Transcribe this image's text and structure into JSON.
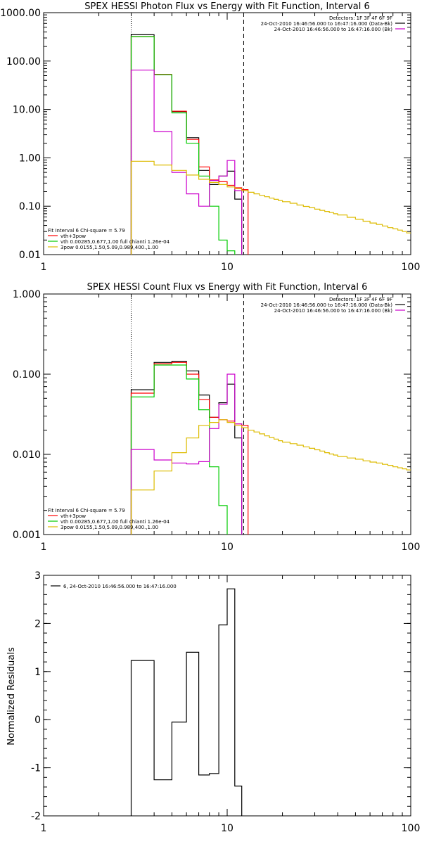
{
  "chart_data": [
    {
      "type": "line",
      "title": "SPEX HESSI Photon Flux vs Energy with Fit Function, Interval 6",
      "xlabel": "",
      "ylabel": "",
      "xscale": "log",
      "yscale": "log",
      "xlim": [
        1,
        100
      ],
      "ylim": [
        0.01,
        1000
      ],
      "x_ticks": [
        "1",
        "10",
        "100"
      ],
      "y_ticks": [
        "0.01",
        "0.10",
        "1.00",
        "10.00",
        "100.00",
        "1000.00"
      ],
      "legend_topright": [
        {
          "text": "Detectors: 1F 3F 4F 6F 9F",
          "color": ""
        },
        {
          "text": "24-Oct-2010 16:46:56.000 to 16:47:16.000 (Data-Bk)",
          "color": "#000000"
        },
        {
          "text": "24-Oct-2010 16:46:56.000 to 16:47:16.000 (Bk)",
          "color": "#cc00cc"
        }
      ],
      "legend_bottomleft": [
        {
          "text": "Fit Interval  6    Chi-square = 5.79",
          "color": ""
        },
        {
          "text": "vth+3pow",
          "color": "#ff0000"
        },
        {
          "text": "vth 0.00285,0.677,1.00   full chianti 1.26e-04",
          "color": "#00cc00"
        },
        {
          "text": "3pow 0.0155,1.50,5.09,0.989,400.,1.00",
          "color": "#ddbb00"
        }
      ],
      "vlines": [
        {
          "x": 3.0,
          "style": "dotted"
        },
        {
          "x": 12.3,
          "style": "dashed"
        }
      ],
      "series": [
        {
          "name": "24-Oct-2010 16:46:56.000 to 16:47:16.000 (Data-Bk)",
          "color": "#000000",
          "edges": [
            3,
            4,
            5,
            6,
            7,
            8,
            9,
            10,
            11,
            12
          ],
          "values": [
            350,
            52,
            9,
            2.6,
            0.55,
            0.28,
            0.42,
            0.53,
            0.14
          ]
        },
        {
          "name": "vth+3pow",
          "color": "#ff0000",
          "edges": [
            3,
            4,
            5,
            6,
            7,
            8,
            9,
            10,
            11,
            12,
            13
          ],
          "values": [
            320,
            53,
            9.2,
            2.4,
            0.65,
            0.35,
            0.32,
            0.27,
            0.24,
            0.22
          ]
        },
        {
          "name": "vth",
          "color": "#00cc00",
          "edges": [
            3,
            4,
            5,
            6,
            7,
            8,
            9,
            10,
            11
          ],
          "values": [
            320,
            52,
            8.5,
            2.0,
            0.42,
            0.1,
            0.02,
            0.012
          ]
        },
        {
          "name": "24-Oct-2010 16:46:56.000 to 16:47:16.000 (Bk)",
          "color": "#cc00cc",
          "edges": [
            3,
            4,
            5,
            6,
            7,
            8,
            9,
            10,
            11,
            12
          ],
          "values": [
            65,
            3.5,
            0.5,
            0.18,
            0.1,
            0.34,
            0.42,
            0.88,
            0.21
          ]
        },
        {
          "name": "3pow",
          "color": "#ddbb00",
          "edges": [
            3,
            4,
            5,
            6,
            7,
            8,
            9,
            10,
            11,
            12,
            13,
            14,
            15,
            16,
            17,
            18,
            19,
            20,
            22,
            24,
            26,
            28,
            30,
            32,
            34,
            36,
            38,
            40,
            45,
            50,
            55,
            60,
            65,
            70,
            75,
            80,
            85,
            90,
            95,
            100
          ],
          "values": [
            0.85,
            0.71,
            0.55,
            0.44,
            0.36,
            0.31,
            0.28,
            0.25,
            0.23,
            0.21,
            0.194,
            0.18,
            0.168,
            0.157,
            0.147,
            0.139,
            0.131,
            0.124,
            0.115,
            0.106,
            0.099,
            0.093,
            0.087,
            0.082,
            0.078,
            0.074,
            0.07,
            0.066,
            0.059,
            0.054,
            0.049,
            0.045,
            0.042,
            0.039,
            0.036,
            0.034,
            0.032,
            0.03,
            0.028
          ]
        }
      ]
    },
    {
      "type": "line",
      "title": "SPEX HESSI Count Flux vs Energy with Fit Function, Interval 6",
      "xlabel": "",
      "ylabel": "",
      "xscale": "log",
      "yscale": "log",
      "xlim": [
        1,
        100
      ],
      "ylim": [
        0.001,
        1
      ],
      "x_ticks": [
        "1",
        "10",
        "100"
      ],
      "y_ticks": [
        "0.001",
        "0.010",
        "0.100",
        "1.000"
      ],
      "legend_topright": [
        {
          "text": "Detectors: 1F 3F 4F 6F 9F",
          "color": ""
        },
        {
          "text": "24-Oct-2010 16:46:56.000 to 16:47:16.000 (Data-Bk)",
          "color": "#000000"
        },
        {
          "text": "24-Oct-2010 16:46:56.000 to 16:47:16.000 (Bk)",
          "color": "#cc00cc"
        }
      ],
      "legend_bottomleft": [
        {
          "text": "Fit Interval  6    Chi-square = 5.79",
          "color": ""
        },
        {
          "text": "vth+3pow",
          "color": "#ff0000"
        },
        {
          "text": "vth 0.00285,0.677,1.00   full chianti 1.26e-04",
          "color": "#00cc00"
        },
        {
          "text": "3pow 0.0155,1.50,5.09,0.989,400.,1.00",
          "color": "#ddbb00"
        }
      ],
      "vlines": [
        {
          "x": 3.0,
          "style": "dotted"
        },
        {
          "x": 12.3,
          "style": "dashed"
        }
      ],
      "series": [
        {
          "name": "24-Oct-2010 16:46:56.000 to 16:47:16.000 (Data-Bk)",
          "color": "#000000",
          "edges": [
            3,
            4,
            5,
            6,
            7,
            8,
            9,
            10,
            11,
            12
          ],
          "values": [
            0.064,
            0.14,
            0.145,
            0.11,
            0.055,
            0.029,
            0.044,
            0.075,
            0.016
          ]
        },
        {
          "name": "vth+3pow",
          "color": "#ff0000",
          "edges": [
            3,
            4,
            5,
            6,
            7,
            8,
            9,
            10,
            11,
            12,
            13
          ],
          "values": [
            0.058,
            0.135,
            0.14,
            0.1,
            0.048,
            0.029,
            0.027,
            0.026,
            0.024,
            0.023
          ]
        },
        {
          "name": "vth",
          "color": "#00cc00",
          "edges": [
            3,
            4,
            5,
            6,
            7,
            8,
            9,
            10,
            11
          ],
          "values": [
            0.052,
            0.13,
            0.13,
            0.087,
            0.036,
            0.007,
            0.0023,
            0.0009
          ]
        },
        {
          "name": "24-Oct-2010 16:46:56.000 to 16:47:16.000 (Bk)",
          "color": "#cc00cc",
          "edges": [
            3,
            4,
            5,
            6,
            7,
            8,
            9,
            10,
            11,
            12
          ],
          "values": [
            0.0115,
            0.0085,
            0.0078,
            0.0076,
            0.0081,
            0.021,
            0.042,
            0.1,
            0.024
          ]
        },
        {
          "name": "3pow",
          "color": "#ddbb00",
          "edges": [
            3,
            4,
            5,
            6,
            7,
            8,
            9,
            10,
            11,
            12,
            13,
            14,
            15,
            16,
            17,
            18,
            19,
            20,
            22,
            24,
            26,
            28,
            30,
            32,
            34,
            36,
            38,
            40,
            45,
            50,
            55,
            60,
            65,
            70,
            75,
            80,
            85,
            90,
            95,
            100
          ],
          "values": [
            0.0036,
            0.0062,
            0.0105,
            0.016,
            0.023,
            0.025,
            0.027,
            0.025,
            0.023,
            0.0215,
            0.02,
            0.019,
            0.018,
            0.017,
            0.0162,
            0.0155,
            0.0148,
            0.0142,
            0.0136,
            0.013,
            0.0124,
            0.0119,
            0.0114,
            0.011,
            0.0105,
            0.0101,
            0.0098,
            0.0094,
            0.009,
            0.0087,
            0.0083,
            0.008,
            0.0078,
            0.0075,
            0.0073,
            0.007,
            0.0068,
            0.0066,
            0.0064
          ]
        }
      ]
    },
    {
      "type": "line",
      "title": "",
      "xlabel": "",
      "ylabel": "Normalized Residuals",
      "xscale": "log",
      "yscale": "linear",
      "xlim": [
        1,
        100
      ],
      "ylim": [
        -2,
        3
      ],
      "x_ticks": [
        "1",
        "10",
        "100"
      ],
      "y_ticks": [
        "-2",
        "-1",
        "0",
        "1",
        "2",
        "3"
      ],
      "legend_topleft": [
        {
          "text": "6, 24-Oct-2010 16:46:56.000 to 16:47:16.000",
          "color": "#000000"
        }
      ],
      "series": [
        {
          "name": "6, 24-Oct-2010 16:46:56.000 to 16:47:16.000",
          "color": "#000000",
          "edges": [
            3,
            4,
            5,
            6,
            7,
            8,
            9,
            10,
            11,
            12
          ],
          "values": [
            1.23,
            -1.25,
            -0.05,
            1.4,
            -1.15,
            -1.12,
            1.97,
            2.72,
            -1.38
          ]
        }
      ]
    }
  ]
}
